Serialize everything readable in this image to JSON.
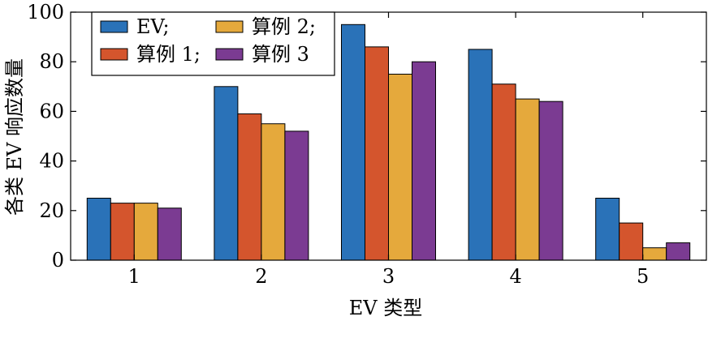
{
  "chart_data": {
    "type": "bar",
    "xlabel": "EV 类型",
    "ylabel": "各类 EV 响应数量",
    "categories": [
      "1",
      "2",
      "3",
      "4",
      "5"
    ],
    "ylim": [
      0,
      100
    ],
    "yticks": [
      0,
      20,
      40,
      60,
      80,
      100
    ],
    "grid": false,
    "legend_position": "top-left",
    "series": [
      {
        "name": "EV;",
        "color": "#2a72b8",
        "values": [
          25,
          70,
          95,
          85,
          25
        ]
      },
      {
        "name": "算例 1;",
        "color": "#d4552d",
        "values": [
          23,
          59,
          86,
          71,
          15
        ]
      },
      {
        "name": "算例 2;",
        "color": "#e5a93c",
        "values": [
          23,
          55,
          75,
          65,
          5
        ]
      },
      {
        "name": "算例 3",
        "color": "#7b3b92",
        "values": [
          21,
          52,
          80,
          64,
          7
        ]
      }
    ]
  }
}
